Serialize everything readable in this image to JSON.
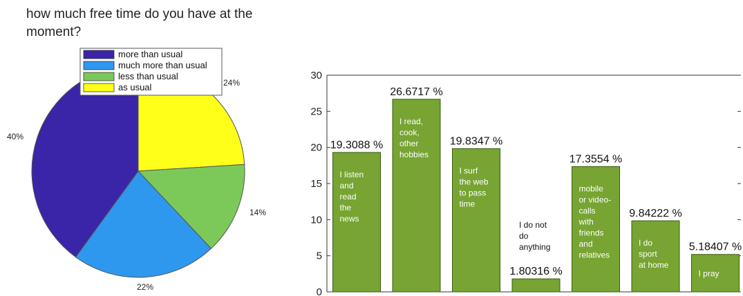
{
  "chart_data": [
    {
      "type": "pie",
      "title": "how much free time do you have at the moment?",
      "legend_position": "top",
      "slices": [
        {
          "name": "more than usual",
          "value": 40,
          "label": "40%",
          "color": "#3a25a8"
        },
        {
          "name": "much more than usual",
          "value": 22,
          "label": "22%",
          "color": "#2e97ee"
        },
        {
          "name": "less than usual",
          "value": 14,
          "label": "14%",
          "color": "#7cc95a"
        },
        {
          "name": "as usual",
          "value": 24,
          "label": "24%",
          "color": "#ffff1a"
        }
      ]
    },
    {
      "type": "bar",
      "ylim": [
        0,
        30
      ],
      "yticks": [
        0,
        5,
        10,
        15,
        20,
        25,
        30
      ],
      "bar_color": "#77a432",
      "bars": [
        {
          "value": 19.3088,
          "value_label": "19.3088 %",
          "text": [
            "I listen",
            "and",
            "read",
            "the",
            "news"
          ]
        },
        {
          "value": 26.6717,
          "value_label": "26.6717 %",
          "text": [
            "I read,",
            "cook,",
            "other",
            "hobbies"
          ]
        },
        {
          "value": 19.8347,
          "value_label": "19.8347 %",
          "text": [
            "I surf",
            "the web",
            "to pass",
            "time"
          ]
        },
        {
          "value": 1.80316,
          "value_label": "1.80316 %",
          "text": [
            "I do not",
            "do",
            "anything"
          ]
        },
        {
          "value": 17.3554,
          "value_label": "17.3554 %",
          "text": [
            "mobile",
            "or video-",
            "calls",
            "with",
            "friends",
            "and",
            "relatives"
          ]
        },
        {
          "value": 9.84222,
          "value_label": "9.84222 %",
          "text": [
            "I do",
            "sport",
            "at home"
          ]
        },
        {
          "value": 5.18407,
          "value_label": "5.18407 %",
          "text": [
            "I pray"
          ]
        }
      ]
    }
  ]
}
